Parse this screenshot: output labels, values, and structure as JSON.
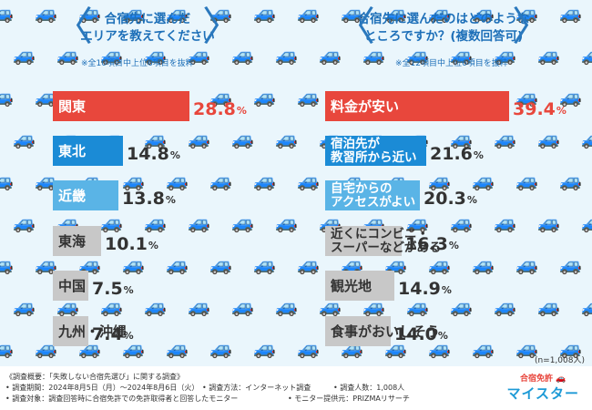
{
  "left": {
    "title_lines": [
      "合宿先に選んだ",
      "エリアを教えてください"
    ],
    "note": "※全10項目中上位6項目を抜粋",
    "unit": "%",
    "categories": [
      "関東",
      "東北",
      "近畿",
      "東海",
      "中国",
      "九州・沖縄"
    ],
    "values": [
      28.8,
      14.8,
      13.8,
      10.1,
      7.5,
      7.4
    ],
    "colors": [
      "#e8473c",
      "#1b8bd6",
      "#5ab4e6",
      "#c8c8c8",
      "#c8c8c8",
      "#c8c8c8"
    ]
  },
  "right": {
    "title_lines": [
      "合宿先に選んだのはどのような",
      "ところですか？(複数回答可)"
    ],
    "note": "※全12項目中上位6項目を抜粋",
    "unit": "%",
    "categories": [
      "料金が安い",
      "宿泊先が\n教習所から近い",
      "自宅からの\nアクセスがよい",
      "近くにコンビニ・\nスーパーなどがある",
      "観光地",
      "食事がおいしそう"
    ],
    "values": [
      39.4,
      21.6,
      20.3,
      16.3,
      14.9,
      14.0
    ],
    "colors": [
      "#e8473c",
      "#1b8bd6",
      "#5ab4e6",
      "#c8c8c8",
      "#c8c8c8",
      "#c8c8c8"
    ]
  },
  "sample_note": "(n=1,008人)",
  "footer": {
    "l1": "《調査概要：「失敗しない合宿先選び」に関する調査》",
    "l2a": "• 調査期間：2024年8月5日（月）～2024年8月6日（火）",
    "l2b": "• 調査方法：インターネット調査",
    "l2c": "• 調査人数：1,008人",
    "l3a": "• 調査対象：調査回答時に合宿免許での免許取得者と回答したモニター",
    "l3b": "• モニター提供元：PRIZMAリサーチ"
  },
  "logo": {
    "line1": "合宿免許",
    "line2": "マイスター"
  },
  "icons": {
    "background": "car-icon",
    "logo": "car-icon"
  },
  "chart_data": [
    {
      "type": "bar",
      "title": "合宿先に選んだエリアを教えてください",
      "subtitle": "※全10項目中上位6項目を抜粋",
      "categories": [
        "関東",
        "東北",
        "近畿",
        "東海",
        "中国",
        "九州・沖縄"
      ],
      "values": [
        28.8,
        14.8,
        13.8,
        10.1,
        7.5,
        7.4
      ],
      "orientation": "horizontal"
    },
    {
      "type": "bar",
      "title": "合宿先に選んだのはどのようなところですか？(複数回答可)",
      "subtitle": "※全12項目中上位6項目を抜粋",
      "categories": [
        "料金が安い",
        "宿泊先が教習所から近い",
        "自宅からのアクセスがよい",
        "近くにコンビニ・スーパーなどがある",
        "観光地",
        "食事がおいしそう"
      ],
      "values": [
        39.4,
        21.6,
        20.3,
        16.3,
        14.9,
        14.0
      ],
      "orientation": "horizontal"
    }
  ]
}
